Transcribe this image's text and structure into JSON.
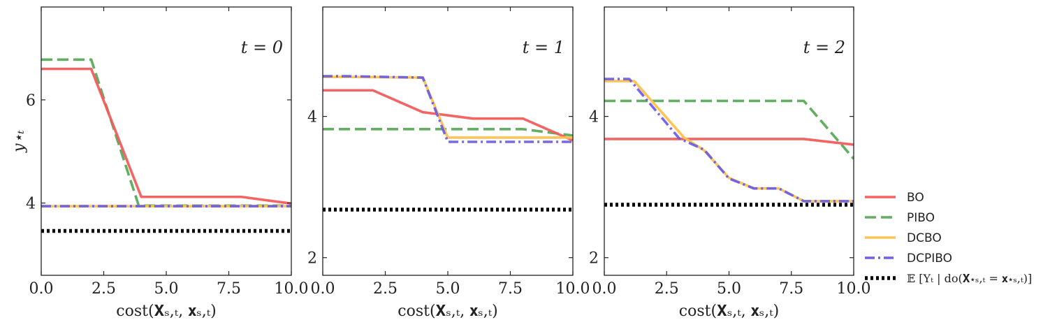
{
  "colors": {
    "BO": "#f25c5c",
    "PIBO": "#5aaa5a",
    "DCBO": "#ffc14d",
    "DCPIBO": "#6659e6",
    "baseline": "#000000"
  },
  "legend": {
    "placement": "right",
    "entries": [
      {
        "key": "BO",
        "label": "BO",
        "style": "solid"
      },
      {
        "key": "PIBO",
        "label": "PIBO",
        "style": "dashed"
      },
      {
        "key": "DCBO",
        "label": "DCBO",
        "style": "solid"
      },
      {
        "key": "DCPIBO",
        "label": "DCPIBO",
        "style": "dashdot"
      },
      {
        "key": "baseline",
        "label": "𝔼 [Yₜ | do(𝐗⋆ₛ,ₜ = 𝐱⋆ₛ,ₜ)]",
        "style": "dotted"
      }
    ]
  },
  "chart_data": [
    {
      "type": "line",
      "title": "t = 0",
      "xlabel": "cost(𝐗ₛ,ₜ, 𝐱ₛ,ₜ)",
      "ylabel": "y⋆ₜ",
      "xlim": [
        0,
        10
      ],
      "ylim": [
        2.6,
        7.8
      ],
      "xticks": [
        "0.0",
        "2.5",
        "5.0",
        "7.5",
        "10.0"
      ],
      "xtick_values": [
        0,
        2.5,
        5,
        7.5,
        10
      ],
      "yticks": [
        "4",
        "6"
      ],
      "ytick_values": [
        4,
        6
      ],
      "grid": false,
      "series": [
        {
          "name": "BO",
          "x": [
            0,
            2,
            4,
            8,
            10
          ],
          "y": [
            6.6,
            6.6,
            4.12,
            4.12,
            3.99
          ]
        },
        {
          "name": "PIBO",
          "x": [
            0,
            2,
            3.9,
            10
          ],
          "y": [
            6.78,
            6.78,
            3.95,
            3.95
          ]
        },
        {
          "name": "DCBO",
          "x": [
            0,
            10
          ],
          "y": [
            3.94,
            3.94
          ]
        },
        {
          "name": "DCPIBO",
          "x": [
            0,
            10
          ],
          "y": [
            3.94,
            3.94
          ]
        },
        {
          "name": "baseline",
          "x": [
            0,
            10
          ],
          "y": [
            3.46,
            3.46
          ]
        }
      ]
    },
    {
      "type": "line",
      "title": "t = 1",
      "xlabel": "cost(𝐗ₛ,ₜ, 𝐱ₛ,ₜ)",
      "ylabel": "",
      "xlim": [
        0,
        10
      ],
      "ylim": [
        1.75,
        5.55
      ],
      "xticks": [
        "0.0",
        "2.5",
        "5.0",
        "7.5",
        "10.0"
      ],
      "xtick_values": [
        0,
        2.5,
        5,
        7.5,
        10
      ],
      "yticks": [
        "2",
        "4"
      ],
      "ytick_values": [
        2,
        4
      ],
      "grid": false,
      "series": [
        {
          "name": "BO",
          "x": [
            0,
            2,
            4,
            6,
            8,
            10
          ],
          "y": [
            4.37,
            4.37,
            4.06,
            3.97,
            3.97,
            3.66
          ]
        },
        {
          "name": "PIBO",
          "x": [
            0,
            8,
            10
          ],
          "y": [
            3.82,
            3.82,
            3.73
          ]
        },
        {
          "name": "DCBO",
          "x": [
            0,
            1,
            4,
            5,
            10
          ],
          "y": [
            4.56,
            4.56,
            4.55,
            3.7,
            3.7
          ]
        },
        {
          "name": "DCPIBO",
          "x": [
            0,
            1,
            4,
            5,
            10
          ],
          "y": [
            4.57,
            4.57,
            4.55,
            3.64,
            3.64
          ]
        },
        {
          "name": "baseline",
          "x": [
            0,
            10
          ],
          "y": [
            2.68,
            2.68
          ]
        }
      ]
    },
    {
      "type": "line",
      "title": "t = 2",
      "xlabel": "cost(𝐗ₛ,ₜ, 𝐱ₛ,ₜ)",
      "ylabel": "",
      "xlim": [
        0,
        10
      ],
      "ylim": [
        1.75,
        5.55
      ],
      "xticks": [
        "0.0",
        "2.5",
        "5.0",
        "7.5",
        "10.0"
      ],
      "xtick_values": [
        0,
        2.5,
        5,
        7.5,
        10
      ],
      "yticks": [
        "2",
        "4"
      ],
      "ytick_values": [
        2,
        4
      ],
      "grid": false,
      "series": [
        {
          "name": "BO",
          "x": [
            0,
            8,
            10
          ],
          "y": [
            3.68,
            3.68,
            3.6
          ]
        },
        {
          "name": "PIBO",
          "x": [
            0,
            8,
            10
          ],
          "y": [
            4.22,
            4.22,
            3.4
          ]
        },
        {
          "name": "DCBO",
          "x": [
            0,
            1.2,
            3.2,
            4,
            5,
            6,
            7,
            8,
            10
          ],
          "y": [
            4.5,
            4.5,
            3.7,
            3.52,
            3.13,
            2.98,
            2.98,
            2.8,
            2.8
          ]
        },
        {
          "name": "DCPIBO",
          "x": [
            0,
            1,
            3,
            4,
            5,
            6,
            7,
            8,
            10
          ],
          "y": [
            4.53,
            4.53,
            3.69,
            3.53,
            3.12,
            2.98,
            2.98,
            2.8,
            2.8
          ]
        },
        {
          "name": "baseline",
          "x": [
            0,
            10
          ],
          "y": [
            2.75,
            2.75
          ]
        }
      ]
    }
  ]
}
